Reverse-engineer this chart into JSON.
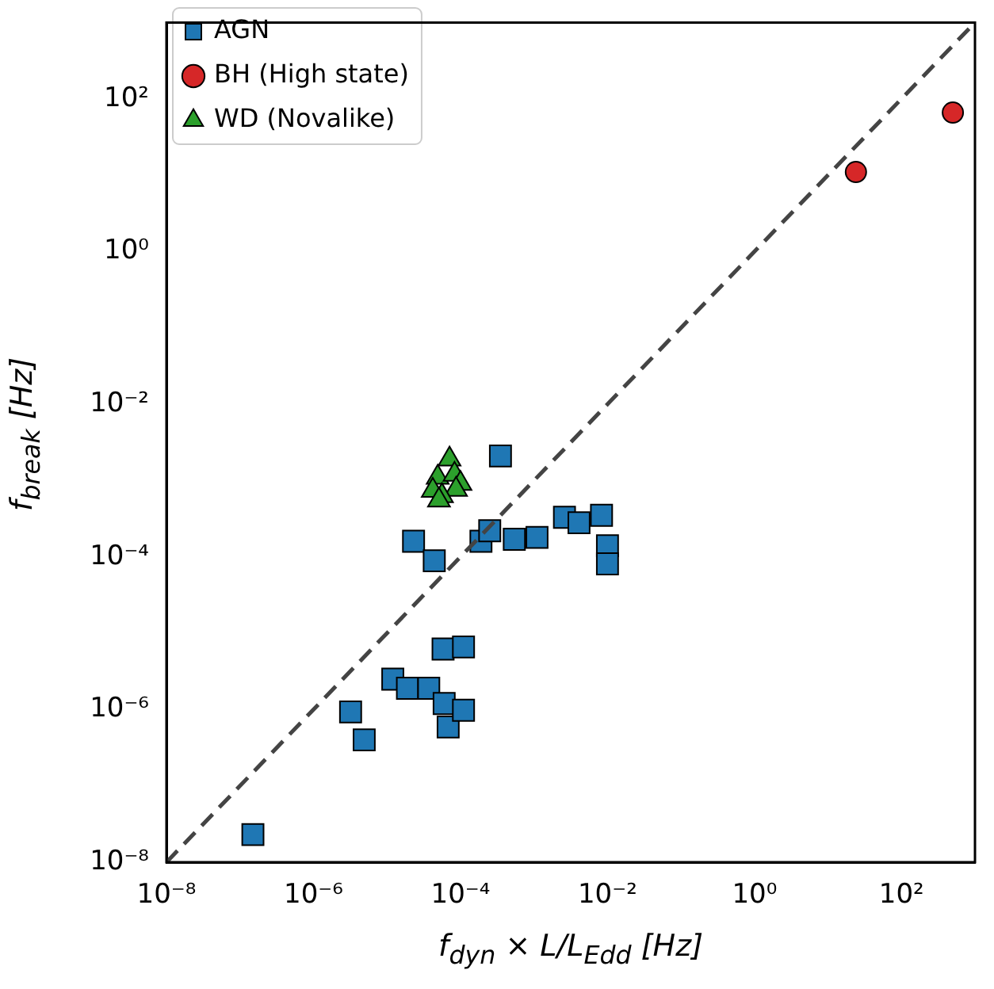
{
  "chart_data": {
    "type": "scatter",
    "xlabel": "f$_{dyn}$ × L/L$_{Edd}$ [Hz]",
    "ylabel": "f$_{break}$ [Hz]",
    "log": "xy",
    "grid": false,
    "legend": "top left",
    "xlim": [
      1e-08,
      1000
    ],
    "ylim": [
      1e-08,
      1000
    ],
    "xticks": [
      {
        "value": 1e-08,
        "label": "10⁻⁸"
      },
      {
        "value": 1e-06,
        "label": "10⁻⁶"
      },
      {
        "value": 0.0001,
        "label": "10⁻⁴"
      },
      {
        "value": 0.01,
        "label": "10⁻²"
      },
      {
        "value": 1,
        "label": "10⁰"
      },
      {
        "value": 100,
        "label": "10²"
      }
    ],
    "yticks": [
      {
        "value": 1e-08,
        "label": "10⁻⁸"
      },
      {
        "value": 1e-06,
        "label": "10⁻⁶"
      },
      {
        "value": 0.0001,
        "label": "10⁻⁴"
      },
      {
        "value": 0.01,
        "label": "10⁻²"
      },
      {
        "value": 1,
        "label": "10⁰"
      },
      {
        "value": 100,
        "label": "10²"
      }
    ],
    "series": [
      {
        "type": "line",
        "color": "#444444",
        "line_style": "dashed",
        "marker": "none",
        "x": [
          1e-08,
          1000
        ],
        "values": [
          1e-08,
          1000
        ]
      },
      {
        "name": "AGN",
        "color": "#1f77b4",
        "marker": "square",
        "x": [
          1.5e-07,
          3.2e-06,
          4.9e-06,
          1.2e-05,
          1.9e-05,
          3.7e-05,
          6e-05,
          6.8e-05,
          0.00011,
          5.8e-05,
          0.00011,
          2.3e-05,
          4.4e-05,
          0.00035,
          0.00019,
          0.00025,
          0.00054,
          0.0011,
          0.0026,
          0.0041,
          0.0083,
          0.01,
          0.01
        ],
        "values": [
          2.3e-08,
          9.3e-07,
          4e-07,
          2.5e-06,
          1.9e-06,
          1.9e-06,
          1.2e-06,
          5.9e-07,
          9.8e-07,
          6.2e-06,
          6.6e-06,
          0.00016,
          8.9e-05,
          0.0021,
          0.00016,
          0.00022,
          0.00017,
          0.00018,
          0.00033,
          0.00028,
          0.00035,
          0.00014,
          8.1e-05
        ]
      },
      {
        "name": "BH (High state)",
        "color": "#d62728",
        "marker": "circle",
        "x": [
          24,
          500
        ],
        "values": [
          11,
          66
        ]
      },
      {
        "name": "WD (Novalike)",
        "color": "#2ca02c",
        "marker": "triangle",
        "x": [
          7.1e-05,
          4.9e-05,
          8.3e-05,
          0.0001,
          4.2e-05,
          8.7e-05,
          5.6e-05,
          5.1e-05
        ],
        "values": [
          0.0019,
          0.0011,
          0.0012,
          0.00091,
          0.00074,
          0.00076,
          0.00063,
          0.00055
        ]
      }
    ]
  }
}
